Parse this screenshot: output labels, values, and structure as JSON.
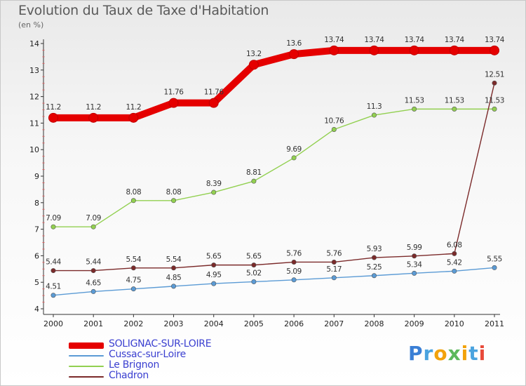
{
  "title": "Evolution du Taux de Taxe d'Habitation",
  "subtitle": "(en %)",
  "logo": {
    "text": "Proxiti"
  },
  "chart_data": {
    "type": "line",
    "x": [
      "2000",
      "2001",
      "2002",
      "2003",
      "2004",
      "2005",
      "2006",
      "2007",
      "2008",
      "2009",
      "2010",
      "2011"
    ],
    "ylim": [
      4,
      14
    ],
    "yticks": [
      "4",
      "5",
      "6",
      "7",
      "8",
      "9",
      "10",
      "11",
      "12",
      "13",
      "14"
    ],
    "grid": false,
    "legend_position": "bottom-left",
    "series": [
      {
        "name": "SOLIGNAC-SUR-LOIRE",
        "color": "#e50000",
        "values": [
          11.2,
          11.2,
          11.2,
          11.76,
          11.76,
          13.2,
          13.6,
          13.74,
          13.74,
          13.74,
          13.74,
          13.74
        ],
        "labels": [
          "11.2",
          "11.2",
          "11.2",
          "11.76",
          "11.76",
          "13.2",
          "13.6",
          "13.74",
          "13.74",
          "13.74",
          "13.74",
          "13.74"
        ]
      },
      {
        "name": "Cussac-sur-Loire",
        "color": "#5b9bd5",
        "values": [
          4.51,
          4.65,
          4.75,
          4.85,
          4.95,
          5.02,
          5.09,
          5.17,
          5.25,
          5.34,
          5.42,
          5.55
        ],
        "labels": [
          "4.51",
          "4.65",
          "4.75",
          "4.85",
          "4.95",
          "5.02",
          "5.09",
          "5.17",
          "5.25",
          "5.34",
          "5.42",
          "5.55"
        ]
      },
      {
        "name": "Le Brignon",
        "color": "#92d050",
        "values": [
          7.09,
          7.09,
          8.08,
          8.08,
          8.39,
          8.81,
          9.69,
          10.76,
          11.3,
          11.53,
          11.53,
          11.53
        ],
        "labels": [
          "7.09",
          "7.09",
          "8.08",
          "8.08",
          "8.39",
          "8.81",
          "9.69",
          "10.76",
          "11.3",
          "11.53",
          "11.53",
          "11.53"
        ]
      },
      {
        "name": "Chadron",
        "color": "#7b2a2a",
        "values": [
          5.44,
          5.44,
          5.54,
          5.54,
          5.65,
          5.65,
          5.76,
          5.76,
          5.93,
          5.99,
          6.08,
          12.51
        ],
        "labels": [
          "5.44",
          "5.44",
          "5.54",
          "5.54",
          "5.65",
          "5.65",
          "5.76",
          "5.76",
          "5.93",
          "5.99",
          "6.08",
          "12.51"
        ]
      }
    ]
  }
}
